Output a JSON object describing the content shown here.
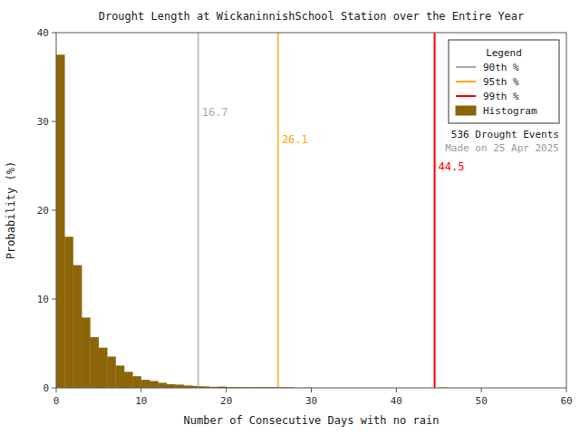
{
  "chart_data": {
    "type": "histogram",
    "title": "Drought Length at WickaninnishSchool Station over the Entire Year",
    "x_label": "Number of Consecutive Days with no rain",
    "y_label": "Probability (%)",
    "xlim": [
      0,
      60
    ],
    "ylim": [
      0,
      40
    ],
    "xticks": [
      0,
      10,
      20,
      30,
      40,
      50,
      60
    ],
    "yticks": [
      0,
      10,
      20,
      30,
      40
    ],
    "grid": false,
    "legend": "upper right",
    "legend_title": "Legend",
    "annotations": [
      "536 Drought Events",
      "Made on 25 Apr 2025"
    ],
    "series": [
      {
        "name": "90th %",
        "type": "vline",
        "color": "#AAAAAA",
        "x": 16.7,
        "data_labels": true
      },
      {
        "name": "95th %",
        "type": "vline",
        "color": "#FFA500",
        "x": 26.1,
        "data_labels": true
      },
      {
        "name": "99th %",
        "type": "vline",
        "color": "#FF0000",
        "x": 44.5,
        "data_labels": true
      },
      {
        "name": "Histogram",
        "type": "histogram",
        "color": "#8B6508",
        "bins": [
          0,
          1,
          2,
          3,
          4,
          5,
          6,
          7,
          8,
          9,
          10,
          11,
          12,
          13,
          14,
          15,
          16,
          17,
          18,
          19,
          20,
          21,
          22,
          23,
          24,
          25,
          26,
          27,
          28,
          29,
          30,
          31,
          32,
          33,
          34,
          35,
          36,
          37,
          38,
          39,
          40,
          41,
          42,
          43,
          44,
          45,
          46,
          47,
          48,
          49,
          50,
          51,
          52,
          53,
          54,
          55,
          56,
          57,
          58,
          59,
          60
        ],
        "values": [
          37.5,
          17.0,
          13.8,
          7.9,
          5.7,
          4.5,
          3.5,
          2.5,
          1.8,
          1.3,
          0.9,
          0.75,
          0.55,
          0.4,
          0.35,
          0.25,
          0.2,
          0.15,
          0.1,
          0.12,
          0.08,
          0.06,
          0.05,
          0.05,
          0.07,
          0.05,
          0.03,
          0.02,
          0.0,
          0.01,
          0.0,
          0.0,
          0.0,
          0.0,
          0.0,
          0.0,
          0.0,
          0.0,
          0.0,
          0.0,
          0.0,
          0.0,
          0.0,
          0.0,
          0.0,
          0.01,
          0.0,
          0.0,
          0.0,
          0.0,
          0.0,
          0.0,
          0.0,
          0.0,
          0.0,
          0.0,
          0.0,
          0.0,
          0.0,
          0.0
        ]
      }
    ]
  }
}
